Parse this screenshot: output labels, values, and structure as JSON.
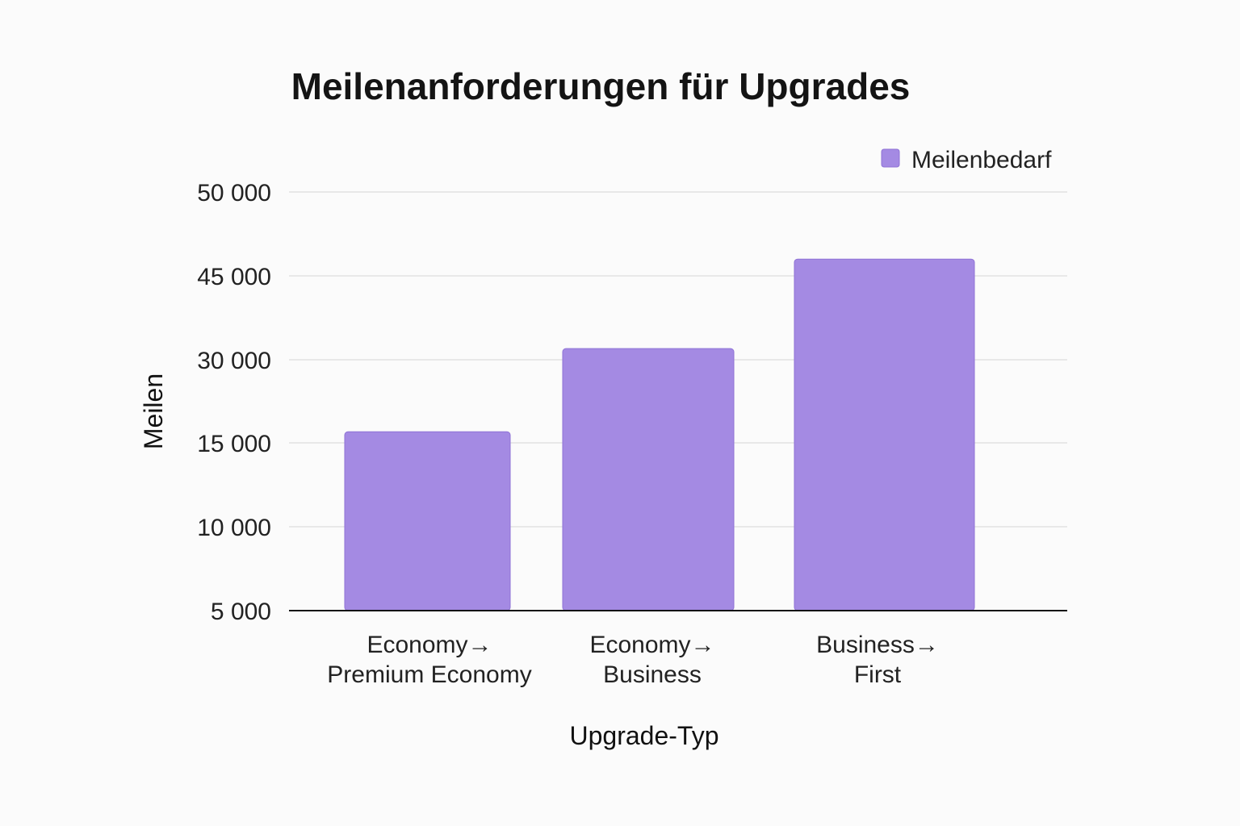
{
  "chart_data": {
    "type": "bar",
    "title": "Meilenanforderungen für Upgrades",
    "xlabel": "Upgrade-Typ",
    "ylabel": "Meilen",
    "categories": [
      [
        "Economy→",
        "Premium Economy"
      ],
      [
        "Economy→",
        "Business"
      ],
      [
        "Business→",
        "First"
      ]
    ],
    "series": [
      {
        "name": "Meilenbedarf",
        "values": [
          17000,
          32000,
          46000
        ]
      }
    ],
    "y_ticks": [
      {
        "value": 5000,
        "label": "5 000"
      },
      {
        "value": 10000,
        "label": "10 000"
      },
      {
        "value": 15000,
        "label": "15 000"
      },
      {
        "value": 30000,
        "label": "30 000"
      },
      {
        "value": 45000,
        "label": "45 000"
      },
      {
        "value": 50000,
        "label": "50 000"
      }
    ],
    "y_scale_note": "tick labels are unevenly spaced; bars are placed against the printed tick labels",
    "grid": true,
    "legend_position": "top-right",
    "colors": {
      "bar": "#a48ae3",
      "bar_edge": "#8f73d6",
      "grid": "#e2e2e2",
      "axis": "#111111"
    }
  }
}
